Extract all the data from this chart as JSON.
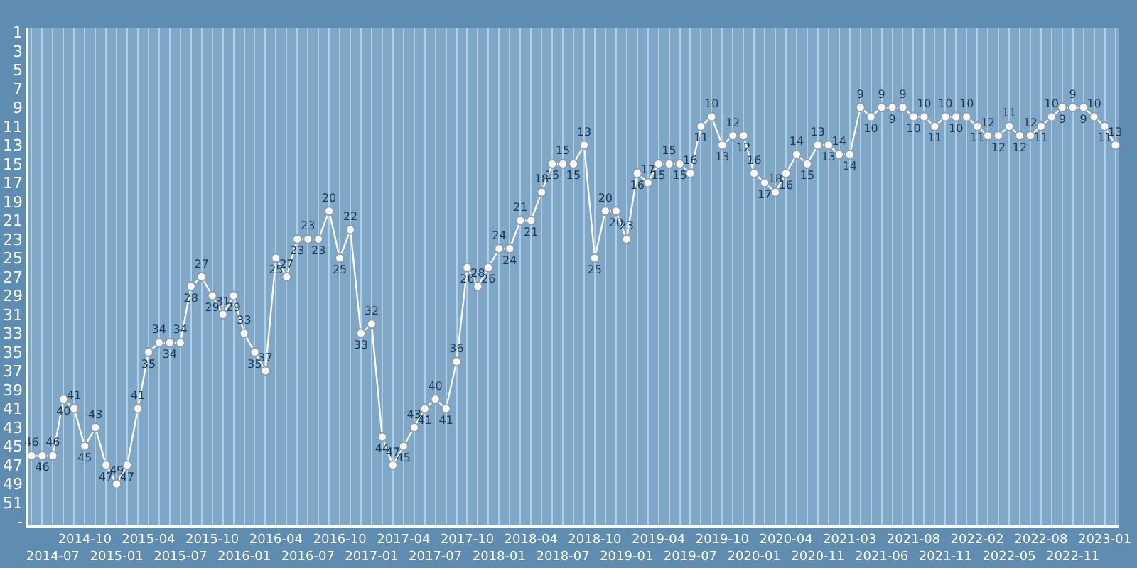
{
  "chart_data": {
    "type": "line",
    "categories": [
      null,
      null,
      "2014-07",
      null,
      null,
      "2014-10",
      null,
      null,
      "2015-01",
      null,
      null,
      "2015-04",
      null,
      null,
      "2015-07",
      null,
      null,
      "2015-10",
      null,
      null,
      "2016-01",
      null,
      null,
      "2016-04",
      null,
      null,
      "2016-07",
      null,
      null,
      "2016-10",
      null,
      null,
      "2017-01",
      null,
      null,
      "2017-04",
      null,
      null,
      "2017-07",
      null,
      null,
      "2017-10",
      null,
      null,
      "2018-01",
      null,
      null,
      "2018-04",
      null,
      null,
      "2018-07",
      null,
      null,
      "2018-10",
      null,
      null,
      "2019-01",
      null,
      null,
      "2019-04",
      null,
      null,
      "2019-07",
      null,
      null,
      "2019-10",
      null,
      null,
      "2020-01",
      null,
      null,
      "2020-04",
      null,
      null,
      "2020-11",
      null,
      null,
      "2021-03",
      null,
      null,
      "2021-06",
      null,
      null,
      "2021-08",
      null,
      null,
      "2021-11",
      null,
      null,
      "2022-02",
      null,
      null,
      "2022-05",
      null,
      null,
      "2022-08",
      null,
      null,
      "2022-11",
      null,
      null,
      "2023-01",
      null
    ],
    "series": [
      {
        "color": "#ffffff",
        "values": [
          46,
          46,
          46,
          40,
          41,
          45,
          43,
          47,
          49,
          47,
          41,
          35,
          34,
          34,
          34,
          28,
          27,
          29,
          31,
          29,
          33,
          35,
          37,
          25,
          27,
          23,
          23,
          23,
          20,
          25,
          22,
          33,
          32,
          44,
          47,
          45,
          43,
          41,
          40,
          41,
          36,
          26,
          28,
          26,
          24,
          24,
          21,
          21,
          18,
          15,
          15,
          15,
          13,
          25,
          20,
          20,
          23,
          16,
          17,
          15,
          15,
          15,
          16,
          11,
          10,
          13,
          12,
          12,
          16,
          17,
          18,
          16,
          14,
          15,
          13,
          13,
          14,
          14,
          9,
          10,
          9,
          9,
          9,
          10,
          10,
          11,
          10,
          10,
          10,
          11,
          12,
          12,
          11,
          12,
          12,
          11,
          10,
          9,
          9,
          9,
          10,
          11,
          13
        ]
      }
    ],
    "ylim": [
      53.4,
      0.6
    ],
    "yticks": [
      1,
      3,
      5,
      7,
      9,
      11,
      13,
      15,
      17,
      19,
      21,
      23,
      25,
      27,
      29,
      31,
      33,
      35,
      37,
      39,
      41,
      43,
      45,
      47,
      49,
      51,
      {
        "value": 53,
        "label": "-"
      }
    ],
    "grid": "x",
    "data_labels": true,
    "marker": "circle",
    "line_style": "solid"
  }
}
